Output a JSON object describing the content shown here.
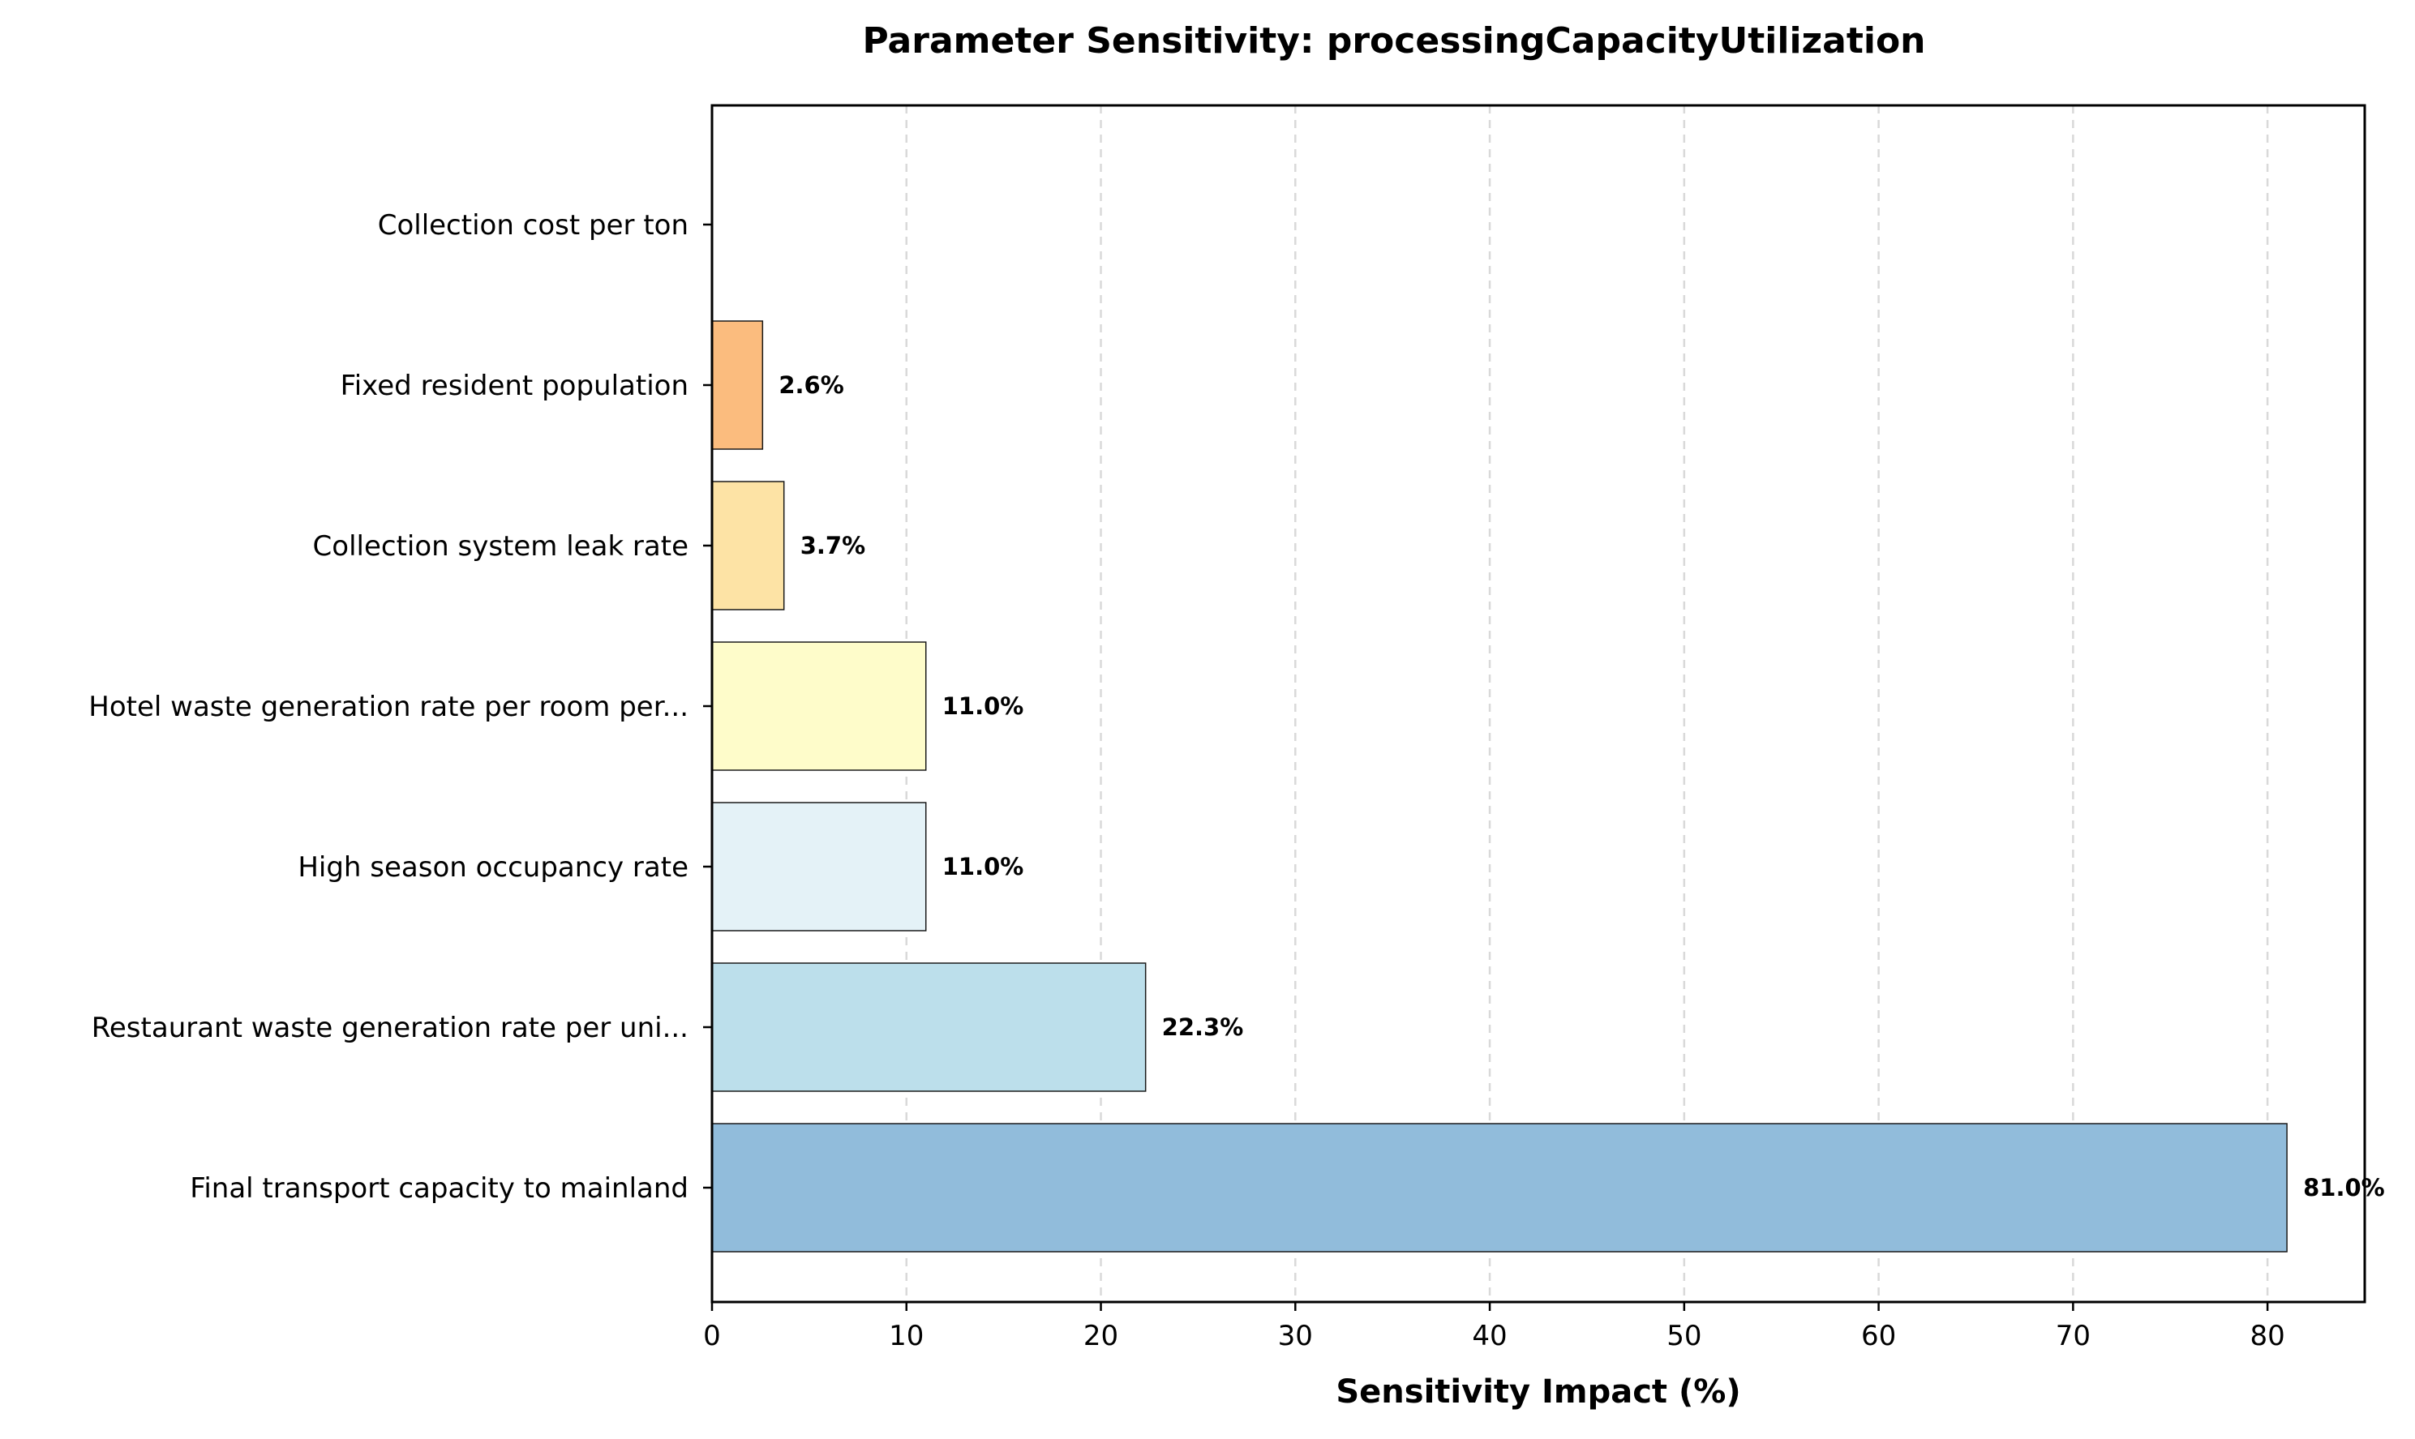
{
  "chart_data": {
    "type": "bar",
    "orientation": "horizontal",
    "title": "Parameter Sensitivity: processingCapacityUtilization",
    "xlabel": "Sensitivity Impact (%)",
    "ylabel": "",
    "xlim": [
      0,
      85
    ],
    "xticks": [
      0,
      10,
      20,
      30,
      40,
      50,
      60,
      70,
      80
    ],
    "grid": "x-axis dashed",
    "legend": "none",
    "categories": [
      "Final transport capacity to mainland",
      "Restaurant waste generation rate per uni...",
      "High season occupancy rate",
      "Hotel waste generation rate per room per...",
      "Collection system leak rate",
      "Fixed resident population",
      "Collection cost per ton"
    ],
    "values": [
      81.0,
      22.3,
      11.0,
      11.0,
      3.7,
      2.6,
      0.0
    ],
    "value_labels": [
      "81.0%",
      "22.3%",
      "11.0%",
      "11.0%",
      "3.7%",
      "2.6%",
      ""
    ],
    "colors": [
      "#91bcdb",
      "#bcdfeb",
      "#e4f2f7",
      "#fefcca",
      "#fde3a5",
      "#fbbc7e",
      "#f78f5d"
    ]
  }
}
